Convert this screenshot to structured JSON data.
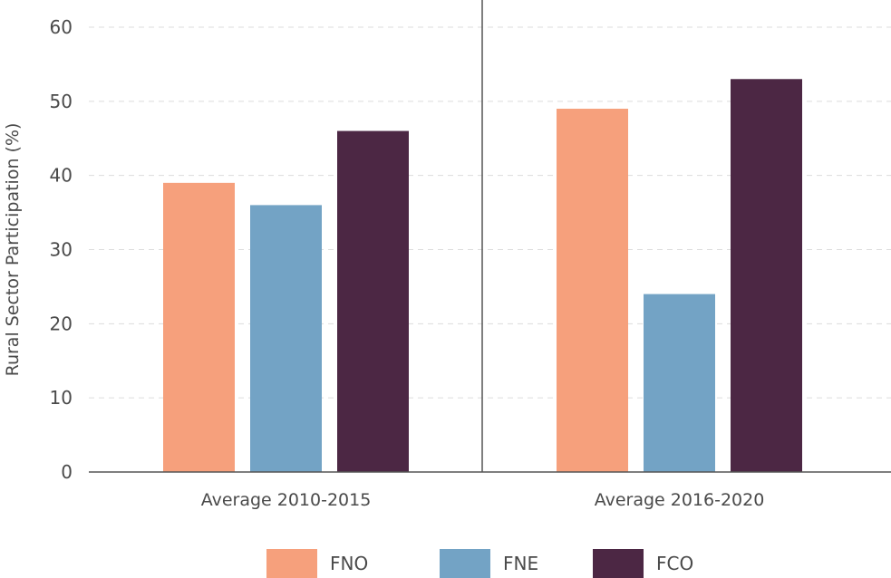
{
  "chart_data": {
    "type": "bar",
    "ylabel": "Rural Sector Participation (%)",
    "xlabel": "",
    "ylim": [
      0,
      60
    ],
    "yticks": [
      0,
      10,
      20,
      30,
      40,
      50,
      60
    ],
    "grid": true,
    "legend_position": "bottom",
    "categories": [
      "Average 2010-2015",
      "Average 2016-2020"
    ],
    "series": [
      {
        "name": "FNO",
        "color": "#f6a07c",
        "values": [
          39,
          49
        ]
      },
      {
        "name": "FNE",
        "color": "#73a3c5",
        "values": [
          36,
          24
        ]
      },
      {
        "name": "FCO",
        "color": "#4c2744",
        "values": [
          46,
          53
        ]
      }
    ]
  }
}
